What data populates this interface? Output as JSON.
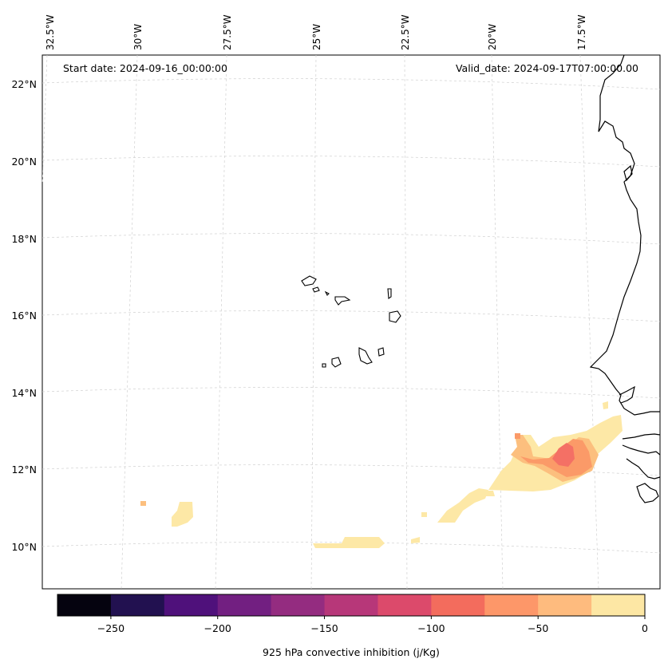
{
  "map": {
    "start_date_label": "Start date: 2024-09-16_00:00:00",
    "valid_date_label": "Valid_date: 2024-09-17T07:00:00.00",
    "lon_labels": [
      "32.5°W",
      "30°W",
      "27.5°W",
      "25°W",
      "22.5°W",
      "20°W",
      "17.5°W"
    ],
    "lat_labels": [
      "22°N",
      "20°N",
      "18°N",
      "16°N",
      "14°N",
      "12°N",
      "10°N"
    ],
    "field_colors": {
      "lightest": "#fde8a6",
      "light_orange": "#fcbf7e",
      "orange": "#fb9a68",
      "salmon": "#f47065"
    },
    "coastline_color": "#000000",
    "gridline_color": "#cccccc"
  },
  "colorbar": {
    "label": "925 hPa convective inhibition (j/Kg)",
    "tick_labels": [
      "−250",
      "−200",
      "−150",
      "−100",
      "−50",
      "0"
    ],
    "tick_values": [
      -250,
      -200,
      -150,
      -100,
      -50,
      0
    ],
    "bounds": [
      -275,
      0
    ],
    "step": 25,
    "colors": [
      "#05030f",
      "#221150",
      "#4f117b",
      "#721f81",
      "#942c80",
      "#b73779",
      "#dc4a6b",
      "#f36c5d",
      "#fd9769",
      "#febb7e",
      "#fde7a4"
    ]
  }
}
